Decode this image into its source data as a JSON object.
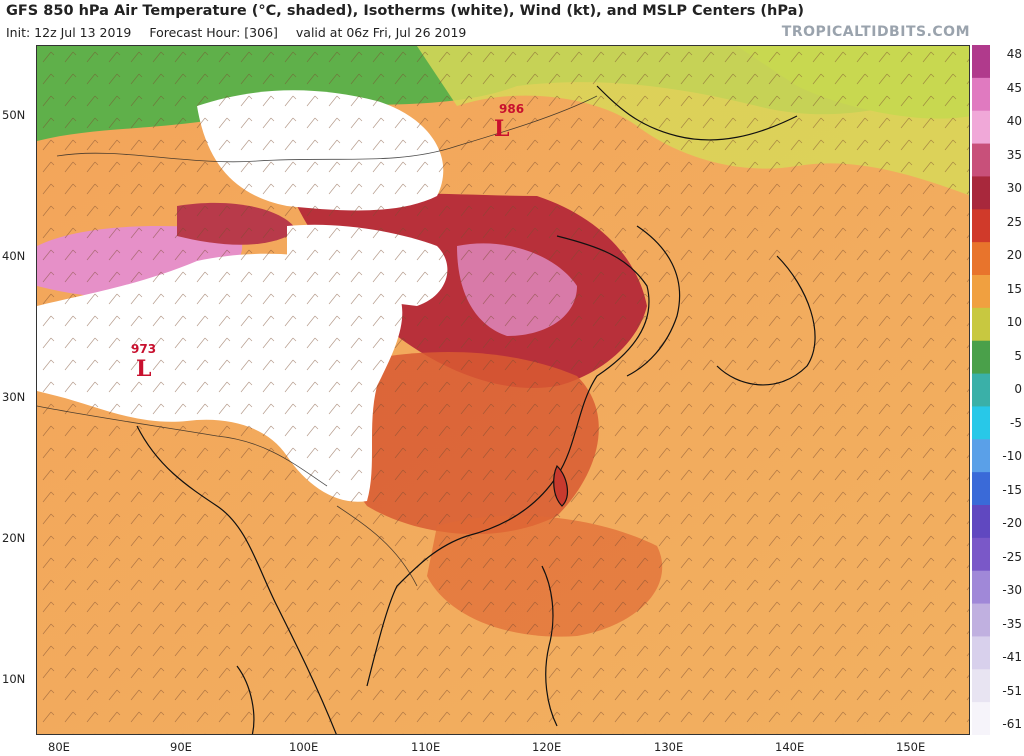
{
  "header": {
    "title": "GFS 850 hPa Air Temperature (°C, shaded), Isotherms (white), Wind (kt), and MSLP Centers (hPa)",
    "init": "Init: 12z Jul 13 2019",
    "forecast_hour": "Forecast Hour: [306]",
    "valid": "valid at 06z Fri, Jul 26 2019",
    "brand": "TROPICALTIDBITS.COM"
  },
  "axes": {
    "lat_labels": [
      "50N",
      "40N",
      "30N",
      "20N",
      "10N"
    ],
    "lon_labels": [
      "80E",
      "90E",
      "100E",
      "110E",
      "120E",
      "130E",
      "140E",
      "150E"
    ]
  },
  "pressure_centers": [
    {
      "label": "L",
      "value": "986"
    },
    {
      "label": "L",
      "value": "973"
    }
  ],
  "colorbar": {
    "labels": [
      "48",
      "45",
      "40",
      "35",
      "30",
      "25",
      "20",
      "15",
      "10",
      "5",
      "0",
      "-5",
      "-10",
      "-15",
      "-20",
      "-25",
      "-30",
      "-35",
      "-41",
      "-51",
      "-61"
    ],
    "colors": [
      "#b03a8c",
      "#e07ac0",
      "#f0a8d8",
      "#c8507a",
      "#a8283c",
      "#d03a2a",
      "#e8742c",
      "#f0a040",
      "#c8c840",
      "#4aa04a",
      "#3ab0a8",
      "#28c8e8",
      "#5aa0e8",
      "#3a6ad8",
      "#6048c0",
      "#7a58c8",
      "#a088d8",
      "#c0b0e0",
      "#d8d0ec",
      "#e8e4f2",
      "#f6f4fa"
    ]
  }
}
